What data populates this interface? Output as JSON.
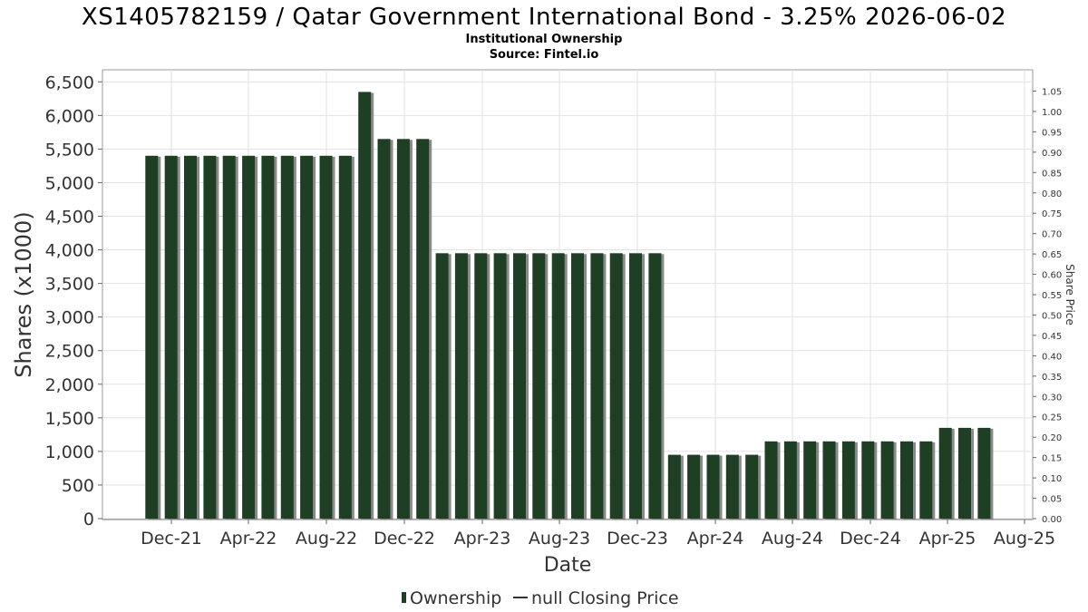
{
  "chart_data": {
    "type": "bar",
    "title": "XS1405782159 / Qatar Government International Bond - 3.25% 2026-06-02",
    "subtitle": "Institutional Ownership",
    "source": "Source: Fintel.io",
    "xlabel": "Date",
    "ylabel": "Shares (x1000)",
    "y2label": "Share Price",
    "ylim": [
      0,
      6700
    ],
    "y2lim": [
      0,
      1.05
    ],
    "grid": true,
    "legend_position": "bottom",
    "x_ticks": [
      "Dec-21",
      "Apr-22",
      "Aug-22",
      "Dec-22",
      "Apr-23",
      "Aug-23",
      "Dec-23",
      "Apr-24",
      "Aug-24",
      "Dec-24",
      "Apr-25",
      "Aug-25"
    ],
    "y_ticks": [
      0,
      500,
      1000,
      1500,
      2000,
      2500,
      3000,
      3500,
      4000,
      4500,
      5000,
      5500,
      6000,
      6500
    ],
    "y_tick_labels": [
      "0",
      "500",
      "1,000",
      "1,500",
      "2,000",
      "2,500",
      "3,000",
      "3,500",
      "4,000",
      "4,500",
      "5,000",
      "5,500",
      "6,000",
      "6,500"
    ],
    "y2_tick_labels": [
      "0.00",
      "0.05",
      "0.10",
      "0.15",
      "0.20",
      "0.25",
      "0.30",
      "0.35",
      "0.40",
      "0.45",
      "0.50",
      "0.55",
      "0.60",
      "0.65",
      "0.70",
      "0.75",
      "0.80",
      "0.85",
      "0.90",
      "0.95",
      "1.00",
      "1.05"
    ],
    "series": [
      {
        "name": "Ownership",
        "color": "#1e3f24",
        "values": [
          5400,
          5400,
          5400,
          5400,
          5400,
          5400,
          5400,
          5400,
          5400,
          5400,
          5400,
          6350,
          5650,
          5650,
          5650,
          3950,
          3950,
          3950,
          3950,
          3950,
          3950,
          3950,
          3950,
          3950,
          3950,
          3950,
          3950,
          950,
          950,
          950,
          950,
          950,
          1150,
          1150,
          1150,
          1150,
          1150,
          1150,
          1150,
          1150,
          1150,
          1350,
          1350,
          1350
        ]
      },
      {
        "name": "null Closing Price",
        "color": "#333333",
        "values": []
      }
    ]
  }
}
